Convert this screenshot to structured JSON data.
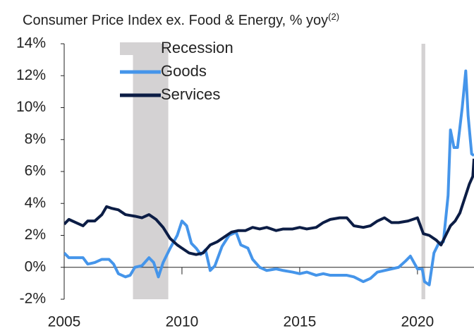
{
  "chart_data": {
    "type": "line",
    "title": "Consumer Price Index ex. Food & Energy, % yoy",
    "title_note": "(2)",
    "xlim": [
      2005,
      2022.4
    ],
    "xticks": [
      2005,
      2010,
      2015,
      2020
    ],
    "ylim": [
      -2,
      14
    ],
    "yticks": [
      {
        "value": -2,
        "label": "-2%"
      },
      {
        "value": 0,
        "label": "0%"
      },
      {
        "value": 2,
        "label": "2%"
      },
      {
        "value": 4,
        "label": "4%"
      },
      {
        "value": 6,
        "label": "6%"
      },
      {
        "value": 8,
        "label": "8%"
      },
      {
        "value": 10,
        "label": "10%"
      },
      {
        "value": 12,
        "label": "12%"
      },
      {
        "value": 14,
        "label": "14%"
      }
    ],
    "legend": "top-center",
    "shading": {
      "name": "Recession",
      "color": "#d4d2d3",
      "ranges": [
        [
          2007.92,
          2009.42
        ],
        [
          2020.17,
          2020.33
        ]
      ]
    },
    "series": [
      {
        "name": "Goods",
        "color": "#4595ea",
        "x": [
          2005,
          2005.2,
          2005.5,
          2005.8,
          2006.0,
          2006.3,
          2006.6,
          2006.9,
          2007.1,
          2007.3,
          2007.6,
          2007.8,
          2008.0,
          2008.3,
          2008.6,
          2008.8,
          2009.0,
          2009.2,
          2009.5,
          2009.8,
          2010.0,
          2010.2,
          2010.4,
          2010.6,
          2010.8,
          2011.0,
          2011.2,
          2011.4,
          2011.7,
          2012.0,
          2012.3,
          2012.5,
          2012.8,
          2013.0,
          2013.3,
          2013.6,
          2014.0,
          2014.3,
          2014.7,
          2015.0,
          2015.3,
          2015.7,
          2016.0,
          2016.3,
          2016.7,
          2017.0,
          2017.3,
          2017.7,
          2018.0,
          2018.3,
          2018.6,
          2018.9,
          2019.2,
          2019.5,
          2019.7,
          2020.0,
          2020.2,
          2020.3,
          2020.5,
          2020.7,
          2020.9,
          2021.1,
          2021.3,
          2021.4,
          2021.55,
          2021.7,
          2021.9,
          2022.05,
          2022.15,
          2022.3,
          2022.4
        ],
        "values": [
          0.9,
          0.6,
          0.6,
          0.6,
          0.2,
          0.3,
          0.5,
          0.5,
          0.2,
          -0.4,
          -0.6,
          -0.5,
          0.0,
          0.1,
          0.6,
          0.3,
          -0.6,
          0.3,
          1.2,
          2.0,
          2.9,
          2.6,
          1.5,
          1.2,
          0.8,
          1.1,
          -0.2,
          0.1,
          1.3,
          2.0,
          2.2,
          1.4,
          1.2,
          0.5,
          0.0,
          -0.2,
          -0.1,
          -0.2,
          -0.3,
          -0.4,
          -0.3,
          -0.5,
          -0.4,
          -0.5,
          -0.5,
          -0.5,
          -0.6,
          -0.9,
          -0.7,
          -0.3,
          -0.2,
          -0.1,
          0.0,
          0.4,
          0.7,
          -0.1,
          -0.1,
          -0.9,
          -1.1,
          0.9,
          1.5,
          1.6,
          4.5,
          8.6,
          7.5,
          7.5,
          10.0,
          12.3,
          9.5,
          7.1,
          7.0
        ]
      },
      {
        "name": "Services",
        "color": "#0c1d45",
        "x": [
          2005,
          2005.2,
          2005.5,
          2005.8,
          2006.0,
          2006.3,
          2006.6,
          2006.8,
          2007.0,
          2007.3,
          2007.6,
          2008.0,
          2008.3,
          2008.6,
          2008.9,
          2009.2,
          2009.5,
          2009.8,
          2010.0,
          2010.3,
          2010.6,
          2010.9,
          2011.2,
          2011.5,
          2011.8,
          2012.1,
          2012.4,
          2012.7,
          2013.0,
          2013.3,
          2013.6,
          2014.0,
          2014.3,
          2014.7,
          2015.0,
          2015.3,
          2015.7,
          2016.0,
          2016.3,
          2016.7,
          2017.0,
          2017.3,
          2017.7,
          2018.0,
          2018.3,
          2018.6,
          2018.9,
          2019.2,
          2019.6,
          2020.0,
          2020.25,
          2020.5,
          2020.8,
          2021.0,
          2021.2,
          2021.4,
          2021.6,
          2021.8,
          2022.0,
          2022.2,
          2022.35,
          2022.4
        ],
        "values": [
          2.7,
          3.0,
          2.8,
          2.6,
          2.9,
          2.9,
          3.3,
          3.8,
          3.7,
          3.6,
          3.3,
          3.2,
          3.1,
          3.3,
          3.0,
          2.5,
          1.8,
          1.4,
          1.2,
          0.9,
          0.8,
          0.9,
          1.4,
          1.6,
          1.9,
          2.2,
          2.3,
          2.3,
          2.5,
          2.4,
          2.5,
          2.3,
          2.4,
          2.4,
          2.5,
          2.4,
          2.5,
          2.8,
          3.0,
          3.1,
          3.1,
          2.6,
          2.5,
          2.6,
          2.9,
          3.1,
          2.8,
          2.8,
          2.9,
          3.1,
          2.1,
          2.0,
          1.7,
          1.4,
          2.0,
          2.6,
          2.9,
          3.4,
          4.3,
          5.2,
          5.7,
          6.8
        ]
      }
    ]
  }
}
